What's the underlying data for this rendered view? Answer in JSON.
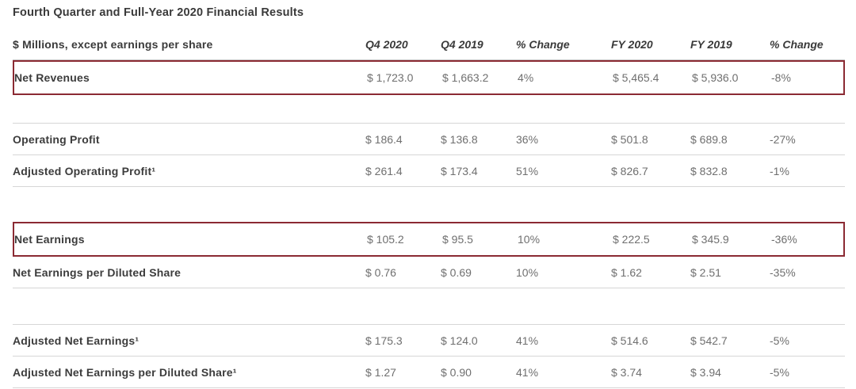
{
  "title": "Fourth Quarter and Full-Year 2020 Financial Results",
  "colors": {
    "highlight_border": "#8b2a33",
    "grid_line": "#d6d6d6",
    "label_text": "#3c3c3c",
    "value_text": "#6f6f6f"
  },
  "table": {
    "header": {
      "label": "$ Millions, except earnings per share",
      "columns": [
        "Q4 2020",
        "Q4 2019",
        "% Change",
        "FY 2020",
        "FY 2019",
        "% Change"
      ]
    },
    "rows": [
      {
        "label": "Net Revenues",
        "values": [
          "$ 1,723.0",
          "$ 1,663.2",
          "4%",
          "$ 5,465.4",
          "$ 5,936.0",
          "-8%"
        ],
        "highlighted": true
      },
      {
        "spacer": true
      },
      {
        "label": "Operating Profit",
        "values": [
          "$ 186.4",
          "$ 136.8",
          "36%",
          "$ 501.8",
          "$ 689.8",
          "-27%"
        ],
        "highlighted": false
      },
      {
        "label": "Adjusted Operating Profit¹",
        "values": [
          "$ 261.4",
          "$ 173.4",
          "51%",
          "$ 826.7",
          "$ 832.8",
          "-1%"
        ],
        "highlighted": false
      },
      {
        "spacer": true
      },
      {
        "label": "Net Earnings",
        "values": [
          "$ 105.2",
          "$ 95.5",
          "10%",
          "$ 222.5",
          "$ 345.9",
          "-36%"
        ],
        "highlighted": true
      },
      {
        "label": "Net Earnings per Diluted Share",
        "values": [
          "$ 0.76",
          "$ 0.69",
          "10%",
          "$ 1.62",
          "$ 2.51",
          "-35%"
        ],
        "highlighted": false
      },
      {
        "spacer": true
      },
      {
        "label": "Adjusted Net Earnings¹",
        "values": [
          "$ 175.3",
          "$ 124.0",
          "41%",
          "$ 514.6",
          "$ 542.7",
          "-5%"
        ],
        "highlighted": false
      },
      {
        "label": "Adjusted Net Earnings per Diluted Share¹",
        "values": [
          "$ 1.27",
          "$ 0.90",
          "41%",
          "$ 3.74",
          "$ 3.94",
          "-5%"
        ],
        "highlighted": false
      }
    ]
  }
}
